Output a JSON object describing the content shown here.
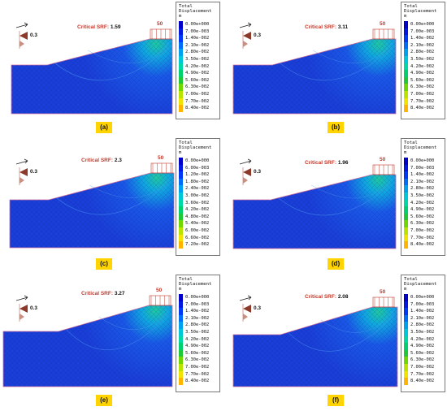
{
  "legend_title": [
    "Total",
    "Displacement",
    "m"
  ],
  "srf_label": "Critical SRF:",
  "load_label": "50",
  "seismic_label": "0.3",
  "legend_colors": [
    "#0000c8",
    "#0018e0",
    "#0038f8",
    "#006cf8",
    "#00a0f0",
    "#00c8d8",
    "#00d8a8",
    "#00d070",
    "#20c838",
    "#70d800",
    "#b8e400",
    "#f0e400",
    "#ffb400",
    "#ff7800",
    "#ff3c00",
    "#d80000"
  ],
  "panels": [
    {
      "caption": "(a)",
      "srf": "1.59",
      "legend_values": [
        "0.00e+000",
        "7.00e-003",
        "1.40e-002",
        "2.10e-002",
        "2.80e-002",
        "3.50e-002",
        "4.20e-002",
        "4.90e-002",
        "5.60e-002",
        "6.30e-002",
        "7.00e-002",
        "7.70e-002",
        "8.40e-002"
      ]
    },
    {
      "caption": "(b)",
      "srf": "3.11",
      "legend_values": [
        "0.00e+000",
        "7.00e-003",
        "1.40e-002",
        "2.10e-002",
        "2.80e-002",
        "3.50e-002",
        "4.20e-002",
        "4.90e-002",
        "5.60e-002",
        "6.30e-002",
        "7.00e-002",
        "7.70e-002",
        "8.40e-002"
      ]
    },
    {
      "caption": "(c)",
      "srf": "2.3",
      "legend_values": [
        "0.00e+000",
        "6.00e-003",
        "1.20e-002",
        "1.80e-002",
        "2.40e-002",
        "3.00e-002",
        "3.60e-002",
        "4.20e-002",
        "4.80e-002",
        "5.40e-002",
        "6.00e-002",
        "6.60e-002",
        "7.20e-002"
      ]
    },
    {
      "caption": "(d)",
      "srf": "1.96",
      "legend_values": [
        "0.00e+000",
        "7.00e-003",
        "1.40e-002",
        "2.10e-002",
        "2.80e-002",
        "3.50e-002",
        "4.20e-002",
        "4.90e-002",
        "5.60e-002",
        "6.30e-002",
        "7.00e-002",
        "7.70e-002",
        "8.40e-002"
      ]
    },
    {
      "caption": "(e)",
      "srf": "3.27",
      "legend_values": [
        "0.00e+000",
        "7.00e-003",
        "1.40e-002",
        "2.10e-002",
        "2.80e-002",
        "3.50e-002",
        "4.20e-002",
        "4.90e-002",
        "5.60e-002",
        "6.30e-002",
        "7.00e-002",
        "7.70e-002",
        "8.40e-002"
      ]
    },
    {
      "caption": "(f)",
      "srf": "2.08",
      "legend_values": [
        "0.00e+000",
        "7.00e-003",
        "1.40e-002",
        "2.10e-002",
        "2.80e-002",
        "3.50e-002",
        "4.20e-002",
        "4.90e-002",
        "5.60e-002",
        "6.30e-002",
        "7.00e-002",
        "7.70e-002",
        "8.40e-002"
      ]
    }
  ]
}
